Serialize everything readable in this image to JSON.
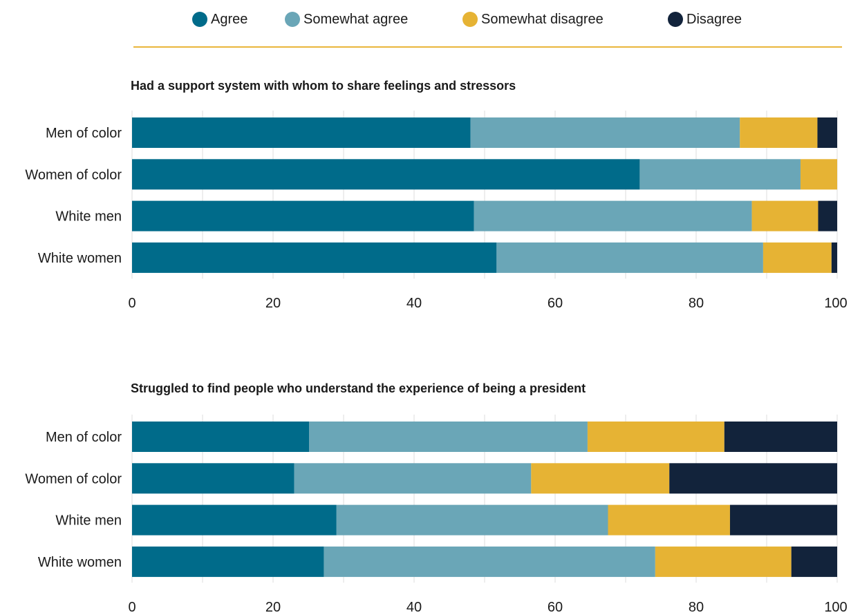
{
  "legend": [
    {
      "label": "Agree",
      "color": "#006b8a"
    },
    {
      "label": "Somewhat agree",
      "color": "#6aa6b7"
    },
    {
      "label": "Somewhat disagree",
      "color": "#e6b334"
    },
    {
      "label": "Disagree",
      "color": "#12233b"
    }
  ],
  "chart_data": [
    {
      "type": "bar",
      "orientation": "horizontal",
      "stacked": true,
      "title": "Had a support system with whom to share feelings and stressors",
      "categories": [
        "Men of color",
        "Women of color",
        "White men",
        "White women"
      ],
      "series": [
        {
          "name": "Agree",
          "values": [
            48,
            72,
            48.5,
            51.7
          ]
        },
        {
          "name": "Somewhat agree",
          "values": [
            38.2,
            22.8,
            39.4,
            37.8
          ]
        },
        {
          "name": "Somewhat disagree",
          "values": [
            11,
            5.2,
            9.4,
            9.7
          ]
        },
        {
          "name": "Disagree",
          "values": [
            2.8,
            0,
            2.7,
            0.8
          ]
        }
      ],
      "xlim": [
        0,
        100
      ],
      "xticks": [
        "0",
        "20",
        "40",
        "60",
        "80",
        "100"
      ],
      "grid": "vertical",
      "legend": "top"
    },
    {
      "type": "bar",
      "orientation": "horizontal",
      "stacked": true,
      "title": "Struggled to find people who understand the experience of being a president",
      "categories": [
        "Men of color",
        "Women of color",
        "White men",
        "White women"
      ],
      "series": [
        {
          "name": "Agree",
          "values": [
            25.1,
            23,
            29,
            27.2
          ]
        },
        {
          "name": "Somewhat agree",
          "values": [
            39.5,
            33.6,
            38.5,
            47
          ]
        },
        {
          "name": "Somewhat disagree",
          "values": [
            19.4,
            19.6,
            17.3,
            19.3
          ]
        },
        {
          "name": "Disagree",
          "values": [
            16,
            23.8,
            15.2,
            6.5
          ]
        }
      ],
      "xlim": [
        0,
        100
      ],
      "xticks": [
        "0",
        "20",
        "40",
        "60",
        "80",
        "100"
      ],
      "grid": "vertical",
      "legend": "top"
    }
  ]
}
